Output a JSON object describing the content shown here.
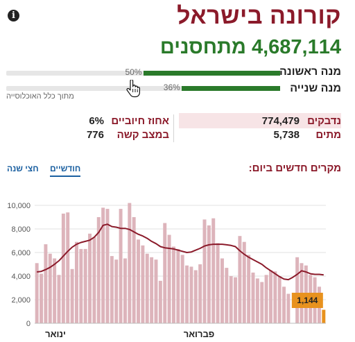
{
  "header": {
    "title": "קורונה בישראל",
    "vaccinated_count": "4,687,114",
    "vaccinated_label": "מתחסנים"
  },
  "doses": [
    {
      "label": "מנה ראשונה",
      "percent": 50,
      "percent_text": "50%"
    },
    {
      "label": "מנה שנייה",
      "percent": 36,
      "percent_text": "36%"
    }
  ],
  "population_note": "מתוך כלל האוכלוסייה",
  "stats": {
    "infected_label": "נדבקים",
    "infected_value": "774,479",
    "dead_label": "מתים",
    "dead_value": "5,738",
    "positive_rate_label": "אחוז חיוביים",
    "positive_rate_value": "6%",
    "serious_label": "במצב קשה",
    "serious_value": "776"
  },
  "section": {
    "title": "מקרים חדשים ביום:",
    "tab_monthly": "חודשיים",
    "tab_half_year": "חצי שנה"
  },
  "colors": {
    "title": "#8b1a2a",
    "vaccine_green": "#2a7a2a",
    "bar": "#ddb4bb",
    "line": "#8b1a2a",
    "highlight": "#e8921e"
  },
  "chart_data": {
    "type": "bar",
    "title": "מקרים חדשים ביום:",
    "xlabel": "",
    "ylabel": "",
    "ylim": [
      0,
      10000
    ],
    "y_ticks": [
      0,
      2000,
      4000,
      6000,
      8000,
      10000
    ],
    "y_tick_labels": [
      "0",
      "2,000",
      "4,000",
      "6,000",
      "8,000",
      "10,000"
    ],
    "x_labels": [
      "ינואר",
      "פברואר"
    ],
    "grid": true,
    "series": [
      {
        "type": "bar",
        "values": [
          5100,
          4200,
          6700,
          5900,
          5500,
          4100,
          9300,
          9400,
          4600,
          6900,
          6300,
          6300,
          7600,
          7300,
          9000,
          9800,
          9700,
          5700,
          5400,
          9700,
          5500,
          10200,
          9000,
          7100,
          6600,
          5900,
          5600,
          5400,
          3600,
          8500,
          7500,
          6500,
          6300,
          5800,
          4900,
          4800,
          4500,
          5000,
          8800,
          8300,
          8900,
          6800,
          5500,
          4700,
          4000,
          3900,
          7400,
          6900,
          5800,
          4300,
          3800,
          3500,
          4100,
          4500,
          4400,
          4000,
          3100,
          2500,
          0,
          5600,
          5100,
          4900,
          4100,
          3900,
          3100,
          1144
        ]
      },
      {
        "type": "line",
        "values": [
          4350,
          4400,
          4550,
          4750,
          5000,
          5300,
          5700,
          6100,
          6450,
          6700,
          6850,
          6950,
          7050,
          7300,
          7700,
          8300,
          8400,
          8200,
          8150,
          8050,
          8050,
          7950,
          7750,
          7550,
          7400,
          7200,
          6950,
          6750,
          6500,
          6400,
          6350,
          6300,
          6200,
          6100,
          6000,
          6050,
          6200,
          6350,
          6550,
          6650,
          6700,
          6700,
          6700,
          6650,
          6600,
          6500,
          6150,
          5850,
          5600,
          5400,
          5200,
          5000,
          4700,
          4450,
          4200,
          3950,
          3750,
          3700,
          3900,
          4150,
          4450,
          4350,
          4200,
          4150,
          4150,
          4100
        ]
      }
    ],
    "highlight_value": 1144,
    "highlight_label": "1,144"
  }
}
